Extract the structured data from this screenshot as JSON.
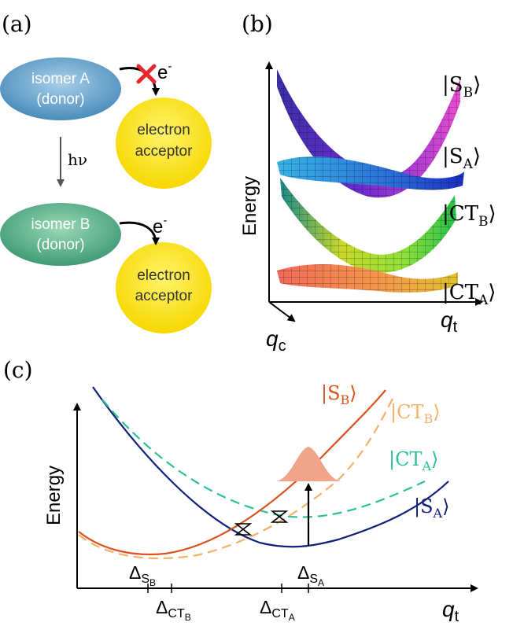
{
  "panel_a": {
    "label": "(a)",
    "isomer_a": {
      "line1": "isomer A",
      "line2": "(donor)"
    },
    "isomer_b": {
      "line1": "isomer B",
      "line2": "(donor)"
    },
    "acceptor_top": {
      "line1": "electron",
      "line2": "acceptor"
    },
    "acceptor_bottom": {
      "line1": "electron",
      "line2": "acceptor"
    },
    "electron_top": "e",
    "electron_top_sup": "-",
    "electron_bottom": "e",
    "electron_bottom_sup": "-",
    "photon": "hν",
    "colors": {
      "isomer_a": "#5f9cc4",
      "isomer_b": "#4fa37d",
      "acceptor": "#ffe600",
      "blocked": "#e8262b"
    }
  },
  "panel_b": {
    "label": "(b)",
    "y_axis": "Energy",
    "x_axis": "q",
    "x_axis_sub": "t",
    "z_axis": "q",
    "z_axis_sub": "c",
    "states": [
      {
        "ket": "|S",
        "sub": "B",
        "close": "⟩"
      },
      {
        "ket": "|S",
        "sub": "A",
        "close": "⟩"
      },
      {
        "ket": "|CT",
        "sub": "B",
        "close": "⟩"
      },
      {
        "ket": "|CT",
        "sub": "A",
        "close": "⟩"
      }
    ]
  },
  "panel_c": {
    "label": "(c)",
    "y_axis": "Energy",
    "x_axis": "q",
    "x_axis_sub": "t",
    "curves": [
      {
        "name_main": "|S",
        "name_sub": "B",
        "name_close": "⟩",
        "color": "#d9531e",
        "style": "solid"
      },
      {
        "name_main": "|CT",
        "name_sub": "B",
        "name_close": "⟩",
        "color": "#f5b06a",
        "style": "dashed"
      },
      {
        "name_main": "|CT",
        "name_sub": "A",
        "name_close": "⟩",
        "color": "#2bbf9b",
        "style": "dashed"
      },
      {
        "name_main": "|S",
        "name_sub": "A",
        "name_close": "⟩",
        "color": "#10207a",
        "style": "solid"
      }
    ],
    "ticks": [
      {
        "main": "Δ",
        "sub": "S",
        "subsub": "B"
      },
      {
        "main": "Δ",
        "sub": "CT",
        "subsub": "B"
      },
      {
        "main": "Δ",
        "sub": "CT",
        "subsub": "A"
      },
      {
        "main": "Δ",
        "sub": "S",
        "subsub": "A"
      }
    ],
    "wavepacket_color": "#f0a58a"
  }
}
